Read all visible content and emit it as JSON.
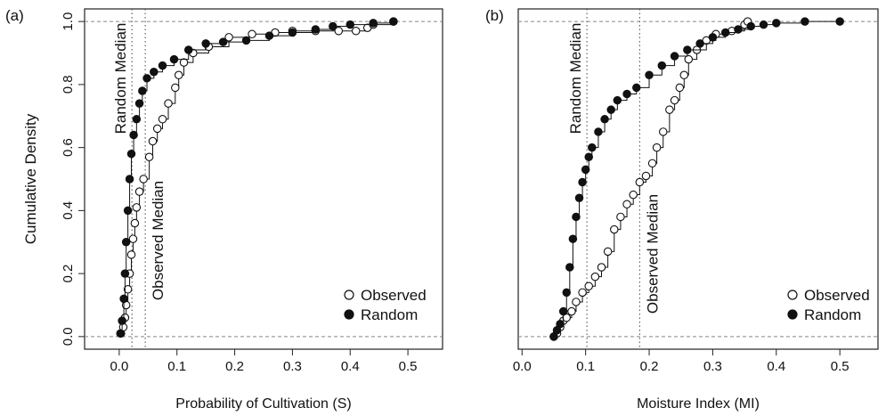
{
  "chart_data": [
    {
      "type": "line",
      "panel_label": "(a)",
      "xlabel": "Probability of Cultivation (S)",
      "ylabel": "Cumulative Density",
      "xlim": [
        -0.06,
        0.56
      ],
      "ylim": [
        -0.04,
        1.04
      ],
      "x_ticks": [
        "0.0",
        "0.1",
        "0.2",
        "0.3",
        "0.4",
        "0.5"
      ],
      "x_tick_values": [
        0,
        0.1,
        0.2,
        0.3,
        0.4,
        0.5
      ],
      "y_ticks": [
        "0.0",
        "0.2",
        "0.4",
        "0.6",
        "0.8",
        "1.0"
      ],
      "y_tick_values": [
        0,
        0.2,
        0.4,
        0.6,
        0.8,
        1.0
      ],
      "grid": false,
      "reference_lines_y": [
        0,
        1
      ],
      "annotations": [
        {
          "text": "Random Median",
          "x": 0.022
        },
        {
          "text": "Observed Median",
          "x": 0.045
        }
      ],
      "legend": {
        "position": "bottom-right",
        "entries": [
          "Observed",
          "Random"
        ]
      },
      "series": [
        {
          "name": "Observed",
          "marker": "open-circle",
          "points": [
            [
              0.003,
              0.01
            ],
            [
              0.007,
              0.03
            ],
            [
              0.01,
              0.06
            ],
            [
              0.012,
              0.1
            ],
            [
              0.015,
              0.15
            ],
            [
              0.018,
              0.2
            ],
            [
              0.021,
              0.26
            ],
            [
              0.024,
              0.31
            ],
            [
              0.027,
              0.36
            ],
            [
              0.03,
              0.41
            ],
            [
              0.035,
              0.46
            ],
            [
              0.042,
              0.5
            ],
            [
              0.052,
              0.57
            ],
            [
              0.058,
              0.62
            ],
            [
              0.066,
              0.66
            ],
            [
              0.075,
              0.69
            ],
            [
              0.085,
              0.74
            ],
            [
              0.097,
              0.79
            ],
            [
              0.103,
              0.83
            ],
            [
              0.112,
              0.87
            ],
            [
              0.128,
              0.9
            ],
            [
              0.155,
              0.92
            ],
            [
              0.19,
              0.95
            ],
            [
              0.23,
              0.96
            ],
            [
              0.27,
              0.965
            ],
            [
              0.3,
              0.97
            ],
            [
              0.34,
              0.97
            ],
            [
              0.38,
              0.97
            ],
            [
              0.41,
              0.97
            ],
            [
              0.43,
              0.98
            ],
            [
              0.44,
              0.99
            ],
            [
              0.475,
              1.0
            ]
          ]
        },
        {
          "name": "Random",
          "marker": "filled-circle",
          "points": [
            [
              0.002,
              0.01
            ],
            [
              0.005,
              0.05
            ],
            [
              0.008,
              0.12
            ],
            [
              0.01,
              0.2
            ],
            [
              0.012,
              0.3
            ],
            [
              0.015,
              0.4
            ],
            [
              0.018,
              0.5
            ],
            [
              0.021,
              0.58
            ],
            [
              0.025,
              0.64
            ],
            [
              0.03,
              0.69
            ],
            [
              0.035,
              0.74
            ],
            [
              0.04,
              0.78
            ],
            [
              0.048,
              0.82
            ],
            [
              0.06,
              0.84
            ],
            [
              0.075,
              0.86
            ],
            [
              0.095,
              0.88
            ],
            [
              0.12,
              0.91
            ],
            [
              0.15,
              0.93
            ],
            [
              0.18,
              0.935
            ],
            [
              0.22,
              0.94
            ],
            [
              0.26,
              0.955
            ],
            [
              0.3,
              0.965
            ],
            [
              0.34,
              0.975
            ],
            [
              0.37,
              0.985
            ],
            [
              0.4,
              0.99
            ],
            [
              0.44,
              0.995
            ],
            [
              0.475,
              1.0
            ]
          ]
        }
      ]
    },
    {
      "type": "line",
      "panel_label": "(b)",
      "xlabel": "Moisture Index (MI)",
      "ylabel": "",
      "xlim": [
        -0.006,
        0.56
      ],
      "ylim": [
        -0.04,
        1.04
      ],
      "x_ticks": [
        "0.0",
        "0.1",
        "0.2",
        "0.3",
        "0.4",
        "0.5"
      ],
      "x_tick_values": [
        0,
        0.1,
        0.2,
        0.3,
        0.4,
        0.5
      ],
      "y_ticks": [],
      "y_tick_values": [],
      "grid": false,
      "reference_lines_y": [
        0,
        1
      ],
      "annotations": [
        {
          "text": "Random Median",
          "x": 0.102
        },
        {
          "text": "Observed Median",
          "x": 0.185
        }
      ],
      "legend": {
        "position": "bottom-right",
        "entries": [
          "Observed",
          "Random"
        ]
      },
      "series": [
        {
          "name": "Observed",
          "marker": "open-circle",
          "points": [
            [
              0.05,
              0.0
            ],
            [
              0.055,
              0.01
            ],
            [
              0.06,
              0.03
            ],
            [
              0.065,
              0.05
            ],
            [
              0.07,
              0.06
            ],
            [
              0.078,
              0.08
            ],
            [
              0.085,
              0.11
            ],
            [
              0.095,
              0.14
            ],
            [
              0.105,
              0.16
            ],
            [
              0.115,
              0.19
            ],
            [
              0.125,
              0.22
            ],
            [
              0.135,
              0.27
            ],
            [
              0.145,
              0.34
            ],
            [
              0.155,
              0.38
            ],
            [
              0.165,
              0.42
            ],
            [
              0.175,
              0.45
            ],
            [
              0.185,
              0.49
            ],
            [
              0.195,
              0.51
            ],
            [
              0.205,
              0.55
            ],
            [
              0.212,
              0.6
            ],
            [
              0.222,
              0.65
            ],
            [
              0.232,
              0.72
            ],
            [
              0.24,
              0.75
            ],
            [
              0.248,
              0.79
            ],
            [
              0.255,
              0.83
            ],
            [
              0.262,
              0.88
            ],
            [
              0.275,
              0.91
            ],
            [
              0.29,
              0.94
            ],
            [
              0.305,
              0.96
            ],
            [
              0.33,
              0.97
            ],
            [
              0.35,
              0.99
            ],
            [
              0.355,
              1.0
            ]
          ]
        },
        {
          "name": "Random",
          "marker": "filled-circle",
          "points": [
            [
              0.05,
              0.0
            ],
            [
              0.055,
              0.02
            ],
            [
              0.06,
              0.04
            ],
            [
              0.065,
              0.08
            ],
            [
              0.07,
              0.14
            ],
            [
              0.075,
              0.22
            ],
            [
              0.08,
              0.31
            ],
            [
              0.085,
              0.38
            ],
            [
              0.09,
              0.44
            ],
            [
              0.095,
              0.49
            ],
            [
              0.1,
              0.53
            ],
            [
              0.105,
              0.57
            ],
            [
              0.11,
              0.6
            ],
            [
              0.12,
              0.65
            ],
            [
              0.13,
              0.69
            ],
            [
              0.14,
              0.72
            ],
            [
              0.15,
              0.75
            ],
            [
              0.165,
              0.77
            ],
            [
              0.18,
              0.79
            ],
            [
              0.2,
              0.83
            ],
            [
              0.22,
              0.86
            ],
            [
              0.24,
              0.89
            ],
            [
              0.26,
              0.91
            ],
            [
              0.28,
              0.93
            ],
            [
              0.3,
              0.95
            ],
            [
              0.32,
              0.965
            ],
            [
              0.34,
              0.975
            ],
            [
              0.36,
              0.985
            ],
            [
              0.38,
              0.99
            ],
            [
              0.4,
              0.995
            ],
            [
              0.445,
              1.0
            ],
            [
              0.5,
              1.0
            ]
          ]
        }
      ]
    }
  ]
}
